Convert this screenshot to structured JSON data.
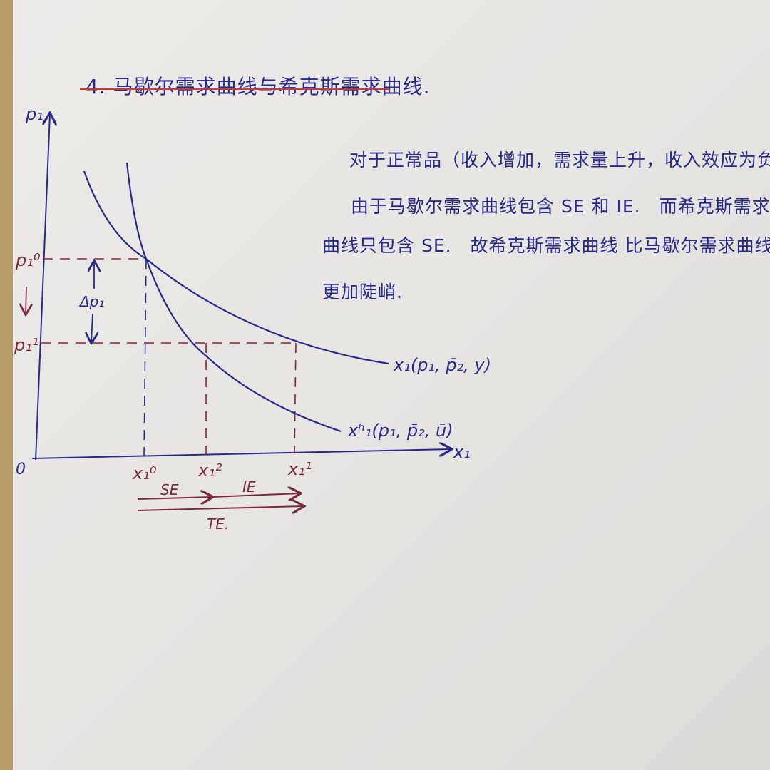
{
  "title": "4. 马歇尔需求曲线与希克斯需求曲线.",
  "notes": [
    "对于正常品（收入增加，需求量上升，收入效应为负）:",
    "由于马歇尔需求曲线包含 SE 和 IE.　而希克斯需求",
    "曲线只包含 SE.　故希克斯需求曲线 比马歇尔需求曲线",
    "更加陡峭."
  ],
  "diagram": {
    "y_axis_label": "p₁",
    "x_axis_label": "x₁",
    "origin_label": "0",
    "price_high_label": "p₁⁰",
    "price_low_label": "p₁¹",
    "delta_label": "Δp₁",
    "marshallian_label": "x₁(p₁, p̄₂, y)",
    "hicksian_label": "xʰ₁(p₁, p̄₂, ū)",
    "x_ticks": [
      "x₁⁰",
      "x₁²",
      "x₁¹"
    ],
    "effects": {
      "se": "SE",
      "ie": "IE",
      "te": "TE."
    },
    "colors": {
      "ink": "#2b2a8c",
      "dashed": "#7a2a3a",
      "underline": "#c8383e",
      "paper": "#e9e8e5"
    }
  }
}
